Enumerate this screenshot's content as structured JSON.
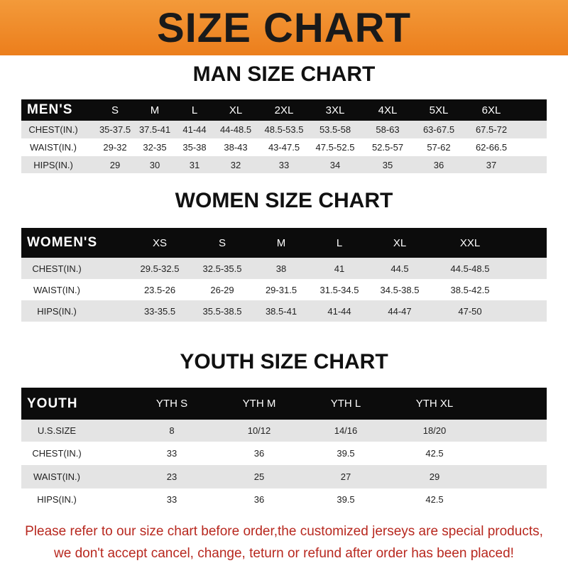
{
  "banner": "SIZE CHART",
  "colors": {
    "banner": "#ef8a2a",
    "header_row": "#0c0c0c",
    "alt_row": "#e4e4e4",
    "note": "#b8281f"
  },
  "men": {
    "title": "MAN SIZE CHART",
    "header": [
      "MEN'S",
      "S",
      "M",
      "L",
      "XL",
      "2XL",
      "3XL",
      "4XL",
      "5XL",
      "6XL"
    ],
    "rows": [
      [
        "CHEST(IN.)",
        "35-37.5",
        "37.5-41",
        "41-44",
        "44-48.5",
        "48.5-53.5",
        "53.5-58",
        "58-63",
        "63-67.5",
        "67.5-72"
      ],
      [
        "WAIST(IN.)",
        "29-32",
        "32-35",
        "35-38",
        "38-43",
        "43-47.5",
        "47.5-52.5",
        "52.5-57",
        "57-62",
        "62-66.5"
      ],
      [
        "HIPS(IN.)",
        "29",
        "30",
        "31",
        "32",
        "33",
        "34",
        "35",
        "36",
        "37"
      ]
    ]
  },
  "women": {
    "title": "WOMEN SIZE CHART",
    "header": [
      "WOMEN'S",
      "XS",
      "S",
      "M",
      "L",
      "XL",
      "XXL"
    ],
    "rows": [
      [
        "CHEST(IN.)",
        "29.5-32.5",
        "32.5-35.5",
        "38",
        "41",
        "44.5",
        "44.5-48.5"
      ],
      [
        "WAIST(IN.)",
        "23.5-26",
        "26-29",
        "29-31.5",
        "31.5-34.5",
        "34.5-38.5",
        "38.5-42.5"
      ],
      [
        "HIPS(IN.)",
        "33-35.5",
        "35.5-38.5",
        "38.5-41",
        "41-44",
        "44-47",
        "47-50"
      ]
    ]
  },
  "youth": {
    "title": "YOUTH SIZE CHART",
    "header": [
      "YOUTH",
      "YTH S",
      "YTH M",
      "YTH L",
      "YTH XL"
    ],
    "rows": [
      [
        "U.S.SIZE",
        "8",
        "10/12",
        "14/16",
        "18/20"
      ],
      [
        "CHEST(IN.)",
        "33",
        "36",
        "39.5",
        "42.5"
      ],
      [
        "WAIST(IN.)",
        "23",
        "25",
        "27",
        "29"
      ],
      [
        "HIPS(IN.)",
        "33",
        "36",
        "39.5",
        "42.5"
      ]
    ]
  },
  "note": [
    "Please refer to our size chart before order,the customized jerseys are special products,",
    "we don't accept cancel, change, teturn or refund after order has been placed!"
  ]
}
